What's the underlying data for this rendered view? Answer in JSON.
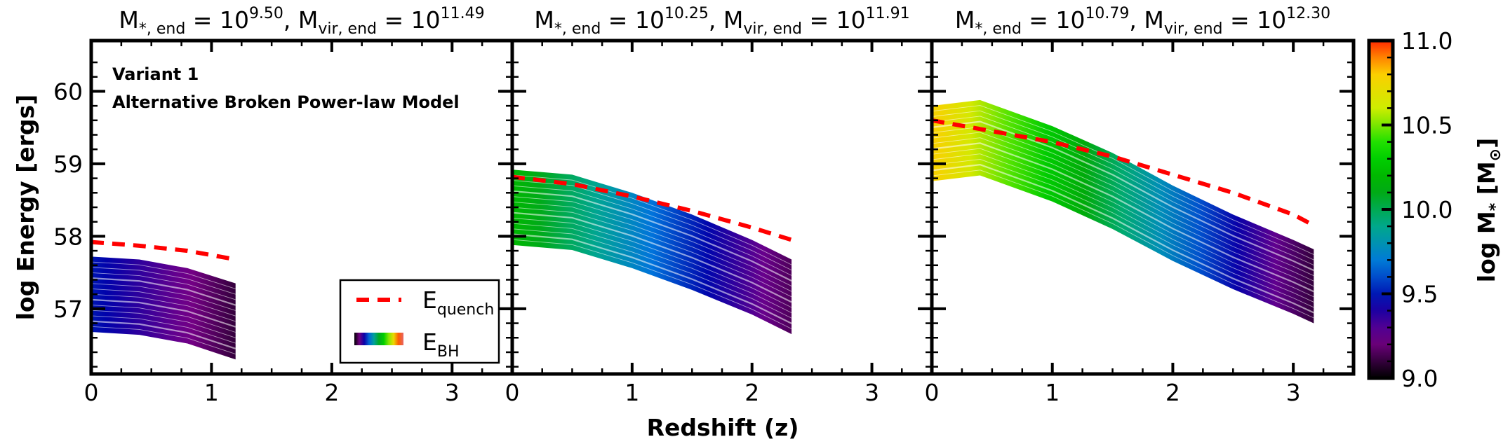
{
  "chart_data": {
    "type": "line",
    "shared": {
      "xlabel": "Redshift (z)",
      "ylabel": "log Energy [ergs]",
      "xlim": [
        0,
        3.5
      ],
      "ylim": [
        56.1,
        60.7
      ],
      "xticks": [
        0,
        1,
        2,
        3
      ],
      "yticks": [
        57,
        58,
        59,
        60
      ]
    },
    "annotations": [
      "Variant 1",
      "Alternative Broken Power-law Model"
    ],
    "legend": {
      "location": "lower-right of first panel",
      "entries": [
        {
          "label": "E",
          "sub": "quench",
          "style": "red-dashed"
        },
        {
          "label": "E",
          "sub": "BH",
          "style": "rainbow-band"
        }
      ]
    },
    "colorbar": {
      "label": "log M",
      "label_sub": "*",
      "label_unit": "[M",
      "label_unit_sub": "⊙",
      "label_unit_close": "]",
      "range": [
        9.0,
        11.0
      ],
      "ticks": [
        "9.0",
        "9.5",
        "10.0",
        "10.5",
        "11.0"
      ],
      "colormap": "nipy_spectral"
    },
    "panels": [
      {
        "title_mstar_exp": "9.50",
        "title_mvir_exp": "11.49",
        "x_end": 1.2,
        "quench": {
          "x": [
            0,
            0.4,
            0.8,
            1.2
          ],
          "y": [
            57.92,
            57.87,
            57.8,
            57.68
          ]
        },
        "bh_band": {
          "x": [
            0,
            0.4,
            0.8,
            1.2
          ],
          "upper": [
            57.72,
            57.68,
            57.56,
            57.35
          ],
          "lower": [
            56.68,
            56.64,
            56.52,
            56.3
          ],
          "mass_start": 9.5,
          "mass_end": 9.1
        }
      },
      {
        "title_mstar_exp": "10.25",
        "title_mvir_exp": "11.91",
        "x_end": 2.33,
        "quench": {
          "x": [
            0,
            0.5,
            1.0,
            1.5,
            2.0,
            2.33
          ],
          "y": [
            58.82,
            58.72,
            58.55,
            58.35,
            58.12,
            57.95
          ]
        },
        "bh_band": {
          "x": [
            0,
            0.5,
            1.0,
            1.5,
            2.0,
            2.33
          ],
          "upper": [
            58.92,
            58.85,
            58.6,
            58.3,
            57.95,
            57.68
          ],
          "lower": [
            57.88,
            57.81,
            57.56,
            57.26,
            56.92,
            56.65
          ],
          "mass_start": 10.2,
          "mass_end": 9.15
        }
      },
      {
        "title_mstar_exp": "10.79",
        "title_mvir_exp": "12.30",
        "x_end": 3.17,
        "quench": {
          "x": [
            0,
            0.5,
            1.0,
            1.5,
            2.0,
            2.5,
            3.0,
            3.17
          ],
          "y": [
            59.6,
            59.45,
            59.3,
            59.1,
            58.85,
            58.6,
            58.3,
            58.15
          ]
        },
        "bh_band": {
          "x": [
            0,
            0.4,
            1.0,
            1.5,
            2.0,
            2.5,
            3.0,
            3.17
          ],
          "upper": [
            59.8,
            59.88,
            59.52,
            59.15,
            58.7,
            58.3,
            57.95,
            57.82
          ],
          "lower": [
            58.76,
            58.84,
            58.48,
            58.1,
            57.66,
            57.27,
            56.93,
            56.8
          ],
          "mass_start": 10.8,
          "mass_end": 9.1
        }
      }
    ]
  }
}
